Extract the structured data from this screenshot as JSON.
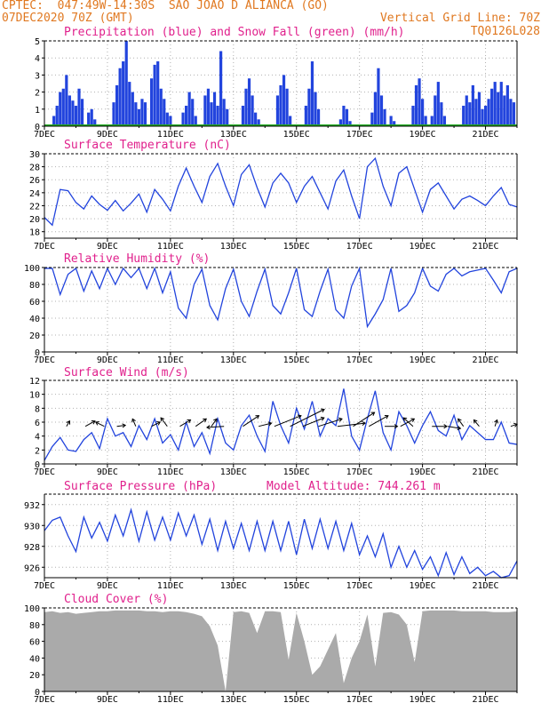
{
  "header": {
    "line1_left": "CPTEC:  047:49W-14:30S  SAO JOAO D ALIANCA (GO)",
    "line2_left": "07DEC2020 70Z (GMT)",
    "line2_right": "Vertical Grid Line: 70Z",
    "line3_right": "TQ0126L028"
  },
  "colors": {
    "header": "#e07820",
    "title": "#e0208c",
    "series": "#2244dd",
    "snow": "#22aa22",
    "cloud": "#aaaaaa",
    "arrow": "#000000"
  },
  "x_ticks": [
    "7DEC",
    "9DEC",
    "11DEC",
    "13DEC",
    "15DEC",
    "17DEC",
    "19DEC",
    "21DEC"
  ],
  "chart_data": [
    {
      "type": "bar",
      "title": "Precipitation (blue) and Snow Fall (green) (mm/h)",
      "ylim": [
        0,
        5
      ],
      "yticks": [
        0,
        1,
        2,
        3,
        4,
        5
      ],
      "x_range": [
        7,
        22
      ],
      "series": [
        {
          "name": "Precipitation",
          "x": [
            7.3,
            7.4,
            7.5,
            7.6,
            7.7,
            7.8,
            7.9,
            8.0,
            8.1,
            8.2,
            8.4,
            8.5,
            8.6,
            9.2,
            9.3,
            9.4,
            9.5,
            9.6,
            9.7,
            9.8,
            9.9,
            10.0,
            10.1,
            10.2,
            10.4,
            10.5,
            10.6,
            10.7,
            10.8,
            10.9,
            11.0,
            11.4,
            11.5,
            11.6,
            11.7,
            11.8,
            12.1,
            12.2,
            12.3,
            12.4,
            12.5,
            12.6,
            12.7,
            12.8,
            13.3,
            13.4,
            13.5,
            13.6,
            13.7,
            13.8,
            14.4,
            14.5,
            14.6,
            14.7,
            14.8,
            15.3,
            15.4,
            15.5,
            15.6,
            15.7,
            16.4,
            16.5,
            16.6,
            16.7,
            17.4,
            17.5,
            17.6,
            17.7,
            17.8,
            18.0,
            18.1,
            18.7,
            18.8,
            18.9,
            19.0,
            19.1,
            19.3,
            19.4,
            19.5,
            19.6,
            19.7,
            20.3,
            20.4,
            20.5,
            20.6,
            20.7,
            20.8,
            20.9,
            21.0,
            21.1,
            21.2,
            21.3,
            21.4,
            21.5,
            21.6,
            21.7,
            21.8,
            21.9
          ],
          "values": [
            0.6,
            1.2,
            2.0,
            2.2,
            3.0,
            1.8,
            1.5,
            1.2,
            2.2,
            1.6,
            0.8,
            1.0,
            0.4,
            1.4,
            2.4,
            3.4,
            3.8,
            5.0,
            2.6,
            2.0,
            1.4,
            1.0,
            1.6,
            1.4,
            2.8,
            3.6,
            3.8,
            2.2,
            1.6,
            0.8,
            0.6,
            0.8,
            1.2,
            2.0,
            1.6,
            0.6,
            1.8,
            2.2,
            1.4,
            2.0,
            1.2,
            4.4,
            1.6,
            1.0,
            1.2,
            2.2,
            2.8,
            1.8,
            0.8,
            0.4,
            1.8,
            2.4,
            3.0,
            2.2,
            0.6,
            1.2,
            2.2,
            3.8,
            2.0,
            1.0,
            0.4,
            1.2,
            1.0,
            0.3,
            0.8,
            2.0,
            3.4,
            1.8,
            1.0,
            0.6,
            0.3,
            1.2,
            2.4,
            2.8,
            1.6,
            0.6,
            0.6,
            1.8,
            2.6,
            1.4,
            0.6,
            1.2,
            1.8,
            1.4,
            2.4,
            1.6,
            2.0,
            1.0,
            1.2,
            1.6,
            2.2,
            2.6,
            2.0,
            2.6,
            1.8,
            2.4,
            1.6,
            1.4
          ]
        },
        {
          "name": "Snow Fall",
          "constant": 0
        }
      ]
    },
    {
      "type": "line",
      "title": "Surface Temperature (nC)",
      "ylim": [
        17,
        30
      ],
      "yticks": [
        18,
        20,
        22,
        24,
        26,
        28,
        30
      ],
      "x_range": [
        7,
        22
      ],
      "series": [
        {
          "name": "Temperature",
          "x": [
            7.0,
            7.25,
            7.5,
            7.75,
            8.0,
            8.25,
            8.5,
            8.75,
            9.0,
            9.25,
            9.5,
            9.75,
            10.0,
            10.25,
            10.5,
            10.75,
            11.0,
            11.25,
            11.5,
            11.75,
            12.0,
            12.25,
            12.5,
            12.75,
            13.0,
            13.25,
            13.5,
            13.75,
            14.0,
            14.25,
            14.5,
            14.75,
            15.0,
            15.25,
            15.5,
            15.75,
            16.0,
            16.25,
            16.5,
            16.75,
            17.0,
            17.25,
            17.5,
            17.75,
            18.0,
            18.25,
            18.5,
            18.75,
            19.0,
            19.25,
            19.5,
            19.75,
            20.0,
            20.25,
            20.5,
            20.75,
            21.0,
            21.25,
            21.5,
            21.75,
            22.0
          ],
          "values": [
            20.2,
            19.0,
            24.5,
            24.3,
            22.5,
            21.5,
            23.5,
            22.2,
            21.3,
            22.8,
            21.2,
            22.4,
            23.8,
            21.0,
            24.5,
            23.0,
            21.2,
            25.0,
            27.8,
            25.0,
            22.5,
            26.5,
            28.5,
            25.0,
            22.0,
            26.8,
            28.3,
            24.8,
            21.8,
            25.5,
            27.0,
            25.5,
            22.5,
            25.0,
            26.5,
            24.0,
            21.5,
            25.8,
            27.5,
            23.5,
            20.0,
            28.0,
            29.3,
            25.0,
            22.0,
            27.0,
            28.0,
            24.5,
            21.0,
            24.5,
            25.5,
            23.5,
            21.5,
            23.0,
            23.5,
            22.8,
            22.0,
            23.5,
            24.8,
            22.2,
            21.8
          ]
        }
      ]
    },
    {
      "type": "line",
      "title": "Relative Humidity (%)",
      "ylim": [
        0,
        100
      ],
      "yticks": [
        0,
        20,
        40,
        60,
        80,
        100
      ],
      "x_range": [
        7,
        22
      ],
      "series": [
        {
          "name": "Relative Humidity",
          "x": [
            7.0,
            7.25,
            7.5,
            7.75,
            8.0,
            8.25,
            8.5,
            8.75,
            9.0,
            9.25,
            9.5,
            9.75,
            10.0,
            10.25,
            10.5,
            10.75,
            11.0,
            11.25,
            11.5,
            11.75,
            12.0,
            12.25,
            12.5,
            12.75,
            13.0,
            13.25,
            13.5,
            13.75,
            14.0,
            14.25,
            14.5,
            14.75,
            15.0,
            15.25,
            15.5,
            15.75,
            16.0,
            16.25,
            16.5,
            16.75,
            17.0,
            17.25,
            17.5,
            17.75,
            18.0,
            18.25,
            18.5,
            18.75,
            19.0,
            19.25,
            19.5,
            19.75,
            20.0,
            20.25,
            20.5,
            20.75,
            21.0,
            21.25,
            21.5,
            21.75,
            22.0
          ],
          "values": [
            99,
            99,
            68,
            92,
            99,
            72,
            96,
            75,
            99,
            80,
            99,
            88,
            99,
            75,
            99,
            70,
            95,
            52,
            40,
            80,
            98,
            55,
            38,
            75,
            98,
            60,
            42,
            72,
            98,
            55,
            45,
            70,
            99,
            50,
            42,
            72,
            98,
            50,
            40,
            78,
            99,
            30,
            45,
            62,
            99,
            48,
            55,
            70,
            99,
            78,
            72,
            92,
            99,
            90,
            95,
            97,
            99,
            85,
            70,
            95,
            99
          ]
        }
      ]
    },
    {
      "type": "line",
      "title": "Surface Wind (m/s)",
      "ylim": [
        0,
        12
      ],
      "yticks": [
        0,
        2,
        4,
        6,
        8,
        10,
        12
      ],
      "x_range": [
        7,
        22
      ],
      "series": [
        {
          "name": "Wind speed",
          "x": [
            7.0,
            7.25,
            7.5,
            7.75,
            8.0,
            8.25,
            8.5,
            8.75,
            9.0,
            9.25,
            9.5,
            9.75,
            10.0,
            10.25,
            10.5,
            10.75,
            11.0,
            11.25,
            11.5,
            11.75,
            12.0,
            12.25,
            12.5,
            12.75,
            13.0,
            13.25,
            13.5,
            13.75,
            14.0,
            14.25,
            14.5,
            14.75,
            15.0,
            15.25,
            15.5,
            15.75,
            16.0,
            16.25,
            16.5,
            16.75,
            17.0,
            17.25,
            17.5,
            17.75,
            18.0,
            18.25,
            18.5,
            18.75,
            19.0,
            19.25,
            19.5,
            19.75,
            20.0,
            20.25,
            20.5,
            20.75,
            21.0,
            21.25,
            21.5,
            21.75,
            22.0
          ],
          "values": [
            0.5,
            2.5,
            3.8,
            2.0,
            1.8,
            3.5,
            4.5,
            2.2,
            6.5,
            4.0,
            4.5,
            2.5,
            5.5,
            3.5,
            6.5,
            3.0,
            4.2,
            2.0,
            6.0,
            2.5,
            4.5,
            1.5,
            6.5,
            3.0,
            2.0,
            5.5,
            7.0,
            4.0,
            1.8,
            9.0,
            5.5,
            3.0,
            8.0,
            5.0,
            9.0,
            4.0,
            6.5,
            5.5,
            10.8,
            4.0,
            2.0,
            6.5,
            10.5,
            4.5,
            2.0,
            7.5,
            5.5,
            3.0,
            5.5,
            7.5,
            4.8,
            4.0,
            7.0,
            3.5,
            5.5,
            4.5,
            3.5,
            3.5,
            6.0,
            3.0,
            2.8
          ]
        }
      ],
      "wind_vectors": [
        {
          "day": 7.7,
          "u": 0.3,
          "v": 0.5
        },
        {
          "day": 8.3,
          "u": 0.9,
          "v": 0.5
        },
        {
          "day": 8.9,
          "u": -0.8,
          "v": 0.4
        },
        {
          "day": 9.3,
          "u": 0.8,
          "v": 0.1
        },
        {
          "day": 9.9,
          "u": -0.3,
          "v": 0.7
        },
        {
          "day": 10.4,
          "u": 0.8,
          "v": 0.4
        },
        {
          "day": 10.9,
          "u": -0.6,
          "v": 0.8
        },
        {
          "day": 11.3,
          "u": 1.0,
          "v": 0.6
        },
        {
          "day": 11.8,
          "u": 1.0,
          "v": 0.7
        },
        {
          "day": 12.3,
          "u": 0.5,
          "v": 0.7
        },
        {
          "day": 12.7,
          "u": -1.6,
          "v": -0.1
        },
        {
          "day": 13.3,
          "u": 1.5,
          "v": 1.0
        },
        {
          "day": 13.8,
          "u": 1.2,
          "v": 0.3
        },
        {
          "day": 14.3,
          "u": 2.5,
          "v": 1.0
        },
        {
          "day": 14.8,
          "u": 3.2,
          "v": 1.6
        },
        {
          "day": 15.2,
          "u": 2.0,
          "v": 0.8
        },
        {
          "day": 15.7,
          "u": 2.2,
          "v": 0.7
        },
        {
          "day": 16.3,
          "u": 2.6,
          "v": 0.3
        },
        {
          "day": 16.8,
          "u": 2.0,
          "v": 1.3
        },
        {
          "day": 17.3,
          "u": 1.8,
          "v": 1.0
        },
        {
          "day": 17.8,
          "u": 1.2,
          "v": 0.0
        },
        {
          "day": 18.3,
          "u": 1.3,
          "v": 0.7
        },
        {
          "day": 18.7,
          "u": -0.9,
          "v": 0.8
        },
        {
          "day": 19.3,
          "u": 1.4,
          "v": 0.0
        },
        {
          "day": 19.8,
          "u": 1.2,
          "v": -0.2
        },
        {
          "day": 20.3,
          "u": -0.5,
          "v": 0.7
        },
        {
          "day": 20.8,
          "u": -0.5,
          "v": 0.6
        },
        {
          "day": 21.3,
          "u": 0.2,
          "v": 0.6
        },
        {
          "day": 21.8,
          "u": 0.6,
          "v": 0.2
        }
      ]
    },
    {
      "type": "line",
      "title": "Surface Pressure (hPa)",
      "annotation": "Model Altitude: 744.261 m",
      "ylim": [
        925,
        933
      ],
      "yticks": [
        926,
        928,
        930,
        932
      ],
      "x_range": [
        7,
        22
      ],
      "series": [
        {
          "name": "Surface pressure",
          "x": [
            7.0,
            7.25,
            7.5,
            7.75,
            8.0,
            8.25,
            8.5,
            8.75,
            9.0,
            9.25,
            9.5,
            9.75,
            10.0,
            10.25,
            10.5,
            10.75,
            11.0,
            11.25,
            11.5,
            11.75,
            12.0,
            12.25,
            12.5,
            12.75,
            13.0,
            13.25,
            13.5,
            13.75,
            14.0,
            14.25,
            14.5,
            14.75,
            15.0,
            15.25,
            15.5,
            15.75,
            16.0,
            16.25,
            16.5,
            16.75,
            17.0,
            17.25,
            17.5,
            17.75,
            18.0,
            18.25,
            18.5,
            18.75,
            19.0,
            19.25,
            19.5,
            19.75,
            20.0,
            20.25,
            20.5,
            20.75,
            21.0,
            21.25,
            21.5,
            21.75,
            22.0
          ],
          "values": [
            929.5,
            930.5,
            930.8,
            929.0,
            927.5,
            930.8,
            928.8,
            930.3,
            928.5,
            931.0,
            929.0,
            931.5,
            928.5,
            931.3,
            928.6,
            930.8,
            928.6,
            931.2,
            929.0,
            931.0,
            928.2,
            930.6,
            927.6,
            930.4,
            927.8,
            930.2,
            927.6,
            930.4,
            927.6,
            930.4,
            927.6,
            930.4,
            927.2,
            930.6,
            927.8,
            930.6,
            927.8,
            930.4,
            927.6,
            930.2,
            927.2,
            929.0,
            927.0,
            929.2,
            926.0,
            928.0,
            926.0,
            927.6,
            925.8,
            927.0,
            925.2,
            927.4,
            925.3,
            927.0,
            925.4,
            926.0,
            925.2,
            925.6,
            925.0,
            925.2,
            926.6
          ]
        }
      ]
    },
    {
      "type": "area",
      "title": "Cloud Cover (%)",
      "ylim": [
        0,
        100
      ],
      "yticks": [
        0,
        20,
        40,
        60,
        80,
        100
      ],
      "x_range": [
        7,
        22
      ],
      "series": [
        {
          "name": "Cloud cover",
          "x": [
            7.0,
            7.25,
            7.5,
            7.75,
            8.0,
            8.25,
            8.5,
            8.75,
            9.0,
            9.25,
            9.5,
            9.75,
            10.0,
            10.25,
            10.5,
            10.75,
            11.0,
            11.25,
            11.5,
            11.75,
            12.0,
            12.25,
            12.5,
            12.75,
            13.0,
            13.25,
            13.5,
            13.75,
            14.0,
            14.25,
            14.5,
            14.75,
            15.0,
            15.25,
            15.5,
            15.75,
            16.0,
            16.25,
            16.5,
            16.75,
            17.0,
            17.25,
            17.5,
            17.75,
            18.0,
            18.25,
            18.5,
            18.75,
            19.0,
            19.25,
            19.5,
            19.75,
            20.0,
            20.25,
            20.5,
            20.75,
            21.0,
            21.25,
            21.5,
            21.75,
            22.0
          ],
          "values": [
            95,
            96,
            94,
            95,
            93,
            94,
            95,
            96,
            96,
            97,
            97,
            97,
            97,
            96,
            96,
            95,
            96,
            96,
            95,
            93,
            90,
            78,
            55,
            0,
            95,
            96,
            94,
            70,
            96,
            96,
            95,
            38,
            94,
            60,
            20,
            30,
            50,
            70,
            10,
            40,
            60,
            92,
            30,
            94,
            95,
            92,
            80,
            35,
            96,
            97,
            97,
            97,
            97,
            96,
            96,
            96,
            96,
            95,
            95,
            95,
            96
          ]
        }
      ]
    }
  ]
}
